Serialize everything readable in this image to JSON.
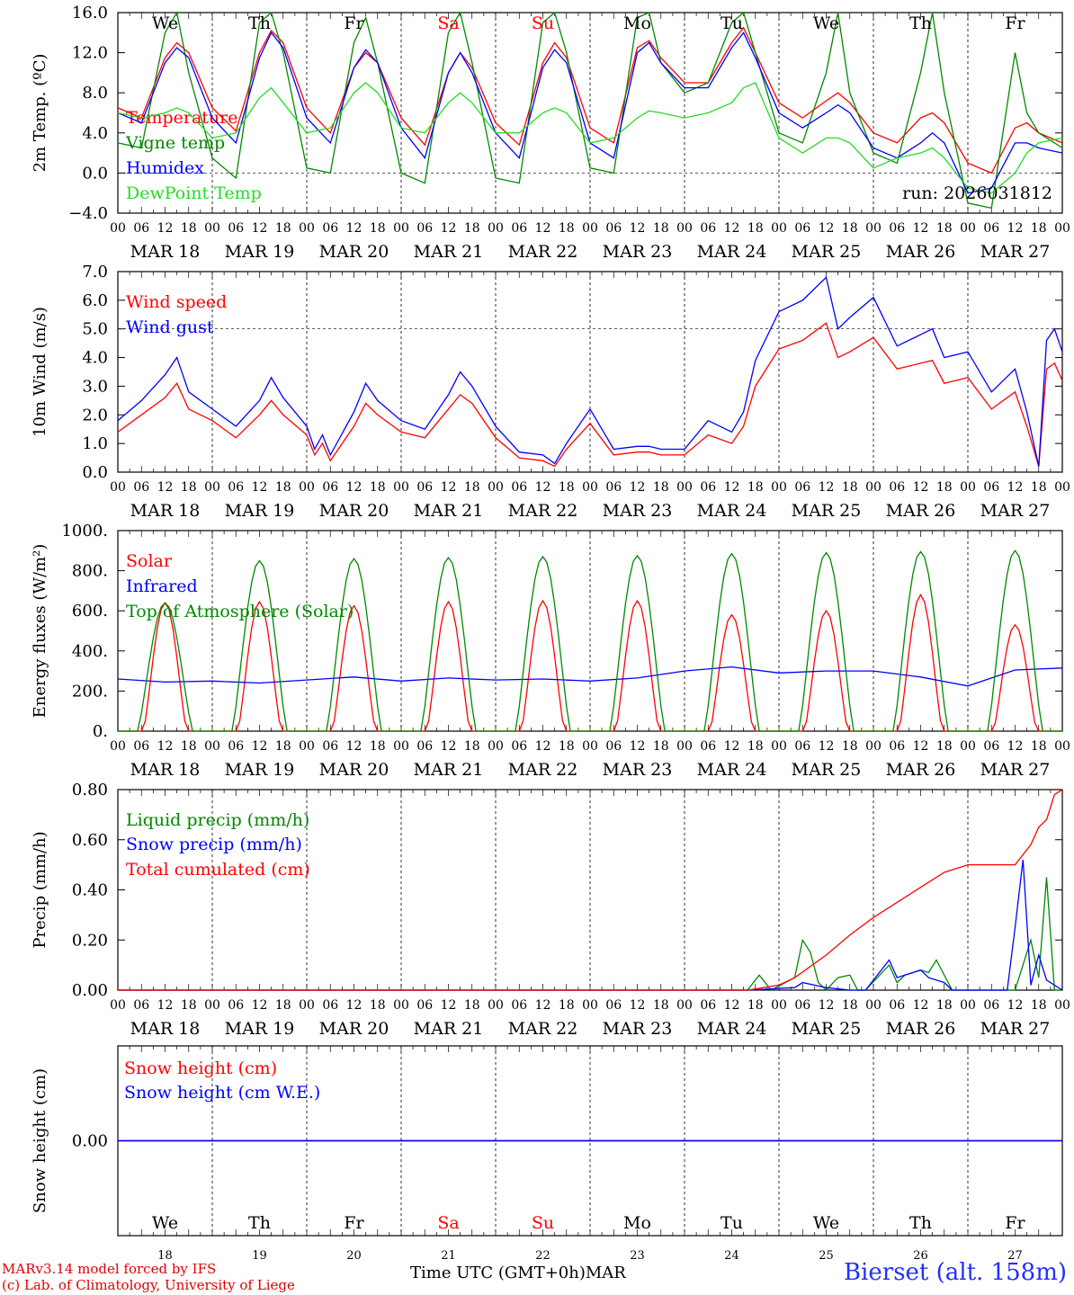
{
  "colors": {
    "temperature": "#ff0000",
    "vigne": "#008800",
    "humidex": "#0000ff",
    "dewpoint": "#22dd22"
  },
  "footer": {
    "model": "MARv3.14 model forced by IFS",
    "lab": "(c) Lab. of Climatology, University of Liege",
    "xlabel": "Time UTC (GMT+0h)",
    "month": "MAR",
    "location": "Bierset (alt. 158m)"
  },
  "days": [
    "We",
    "Th",
    "Fr",
    "Sa",
    "Su",
    "Mo",
    "Tu",
    "We",
    "Th",
    "Fr"
  ],
  "weekend_days": [
    3,
    4
  ],
  "dates": [
    "MAR 18",
    "MAR 19",
    "MAR 20",
    "MAR 21",
    "MAR 22",
    "MAR 23",
    "MAR 24",
    "MAR 25",
    "MAR 26",
    "MAR 27"
  ],
  "day_numbers": [
    "18",
    "19",
    "20",
    "21",
    "22",
    "23",
    "24",
    "25",
    "26",
    "27"
  ],
  "hour_ticks": [
    "00",
    "06",
    "12",
    "18"
  ],
  "final_hour": "00",
  "chart_data": [
    {
      "type": "line",
      "ylabel": "2m Temp. (ºC)",
      "ylim": [
        -4,
        16
      ],
      "yticks": [
        "16.0",
        "12.0",
        "8.0",
        "4.0",
        "0.0",
        "−4.0"
      ],
      "yticks_values": [
        16,
        12,
        8,
        4,
        0,
        -4
      ],
      "hline": 0,
      "annotation": "run: 2026031812",
      "series": [
        {
          "name": "Temperature",
          "color": "temperature",
          "x": [
            0,
            6,
            12,
            15,
            18,
            24,
            30,
            36,
            39,
            42,
            48,
            54,
            60,
            63,
            66,
            72,
            78,
            84,
            87,
            90,
            96,
            102,
            108,
            111,
            114,
            120,
            126,
            132,
            135,
            138,
            144,
            150,
            156,
            159,
            162,
            168,
            174,
            180,
            183,
            186,
            192,
            198,
            204,
            207,
            210,
            216,
            222,
            228,
            231,
            234,
            240
          ],
          "values": [
            6.5,
            5.5,
            11.5,
            13.0,
            12.0,
            6.5,
            4.2,
            12.0,
            14.2,
            13.0,
            6.5,
            4.0,
            10.5,
            12.0,
            11.0,
            5.5,
            2.8,
            10.0,
            12.0,
            10.5,
            5.0,
            2.8,
            11.0,
            13.0,
            11.5,
            4.5,
            3.0,
            12.5,
            13.2,
            11.5,
            9.0,
            9.0,
            13.0,
            14.5,
            12.0,
            7.0,
            5.5,
            7.2,
            8.0,
            7.0,
            4.0,
            3.0,
            5.5,
            6.0,
            5.0,
            1.0,
            0.0,
            4.5,
            5.0,
            4.0,
            3.0
          ]
        },
        {
          "name": "Vigne temp",
          "color": "vigne",
          "x": [
            0,
            6,
            12,
            15,
            18,
            24,
            30,
            36,
            39,
            42,
            48,
            54,
            60,
            63,
            66,
            72,
            78,
            84,
            87,
            90,
            96,
            102,
            108,
            111,
            114,
            120,
            126,
            132,
            135,
            138,
            144,
            150,
            156,
            159,
            162,
            168,
            174,
            180,
            183,
            186,
            192,
            198,
            204,
            207,
            210,
            216,
            222,
            228,
            231,
            234,
            240
          ],
          "values": [
            3.0,
            2.5,
            14.0,
            16.0,
            10.0,
            1.5,
            -0.5,
            15.0,
            16.0,
            12.0,
            0.5,
            0.0,
            13.0,
            15.5,
            11.0,
            0.0,
            -1.0,
            14.0,
            16.0,
            11.0,
            -0.5,
            -1.0,
            15.0,
            16.0,
            12.0,
            0.5,
            0.0,
            15.5,
            16.0,
            11.0,
            8.0,
            9.0,
            15.0,
            16.0,
            12.0,
            4.0,
            3.0,
            10.0,
            16.0,
            8.0,
            2.0,
            1.0,
            10.0,
            16.0,
            8.0,
            -3.0,
            -3.5,
            12.0,
            6.0,
            4.0,
            2.5
          ]
        },
        {
          "name": "Humidex",
          "color": "humidex",
          "x": [
            0,
            6,
            12,
            15,
            18,
            24,
            30,
            36,
            39,
            42,
            48,
            54,
            60,
            63,
            66,
            72,
            78,
            84,
            87,
            90,
            96,
            102,
            108,
            111,
            114,
            120,
            126,
            132,
            135,
            138,
            144,
            150,
            156,
            159,
            162,
            168,
            174,
            180,
            183,
            186,
            192,
            198,
            204,
            207,
            210,
            216,
            222,
            228,
            231,
            234,
            240
          ],
          "values": [
            6.0,
            5.0,
            11.0,
            12.5,
            11.5,
            5.5,
            3.0,
            11.5,
            14.0,
            12.5,
            5.5,
            3.0,
            10.5,
            12.3,
            11.0,
            4.5,
            1.5,
            10.0,
            12.0,
            10.0,
            4.0,
            1.5,
            10.5,
            12.3,
            11.0,
            3.0,
            1.5,
            12.0,
            13.0,
            11.0,
            8.5,
            8.5,
            12.5,
            14.0,
            11.5,
            6.0,
            4.5,
            6.0,
            6.8,
            6.0,
            2.5,
            1.5,
            3.0,
            4.0,
            3.0,
            -2.0,
            -1.5,
            3.0,
            3.0,
            2.5,
            2.0
          ]
        },
        {
          "name": "DewPoint Temp",
          "color": "dewpoint",
          "x": [
            0,
            6,
            12,
            15,
            18,
            24,
            30,
            36,
            39,
            42,
            48,
            54,
            60,
            63,
            66,
            72,
            78,
            84,
            87,
            90,
            96,
            102,
            108,
            111,
            114,
            120,
            126,
            132,
            135,
            138,
            144,
            150,
            156,
            159,
            162,
            168,
            174,
            180,
            183,
            186,
            192,
            198,
            204,
            207,
            210,
            216,
            222,
            228,
            231,
            234,
            240
          ],
          "values": [
            6.0,
            5.5,
            6.0,
            6.5,
            6.0,
            3.5,
            4.0,
            7.5,
            8.5,
            7.0,
            4.0,
            4.5,
            8.0,
            9.0,
            8.0,
            4.5,
            4.0,
            7.0,
            8.0,
            7.0,
            4.0,
            4.0,
            6.0,
            6.5,
            6.0,
            3.0,
            3.5,
            5.5,
            6.2,
            6.0,
            5.5,
            6.0,
            7.0,
            8.5,
            9.0,
            3.5,
            2.0,
            3.5,
            3.5,
            3.0,
            0.5,
            1.5,
            2.0,
            2.5,
            1.5,
            -1.5,
            -2.0,
            0.0,
            2.0,
            3.0,
            3.5
          ]
        }
      ]
    },
    {
      "type": "line",
      "ylabel": "10m Wind (m/s)",
      "ylim": [
        0,
        7
      ],
      "yticks": [
        "7.0",
        "6.0",
        "5.0",
        "4.0",
        "3.0",
        "2.0",
        "1.0",
        "0.0"
      ],
      "yticks_values": [
        7,
        6,
        5,
        4,
        3,
        2,
        1,
        0
      ],
      "hline": 5,
      "series": [
        {
          "name": "Wind speed",
          "color": "temperature",
          "x": [
            0,
            6,
            12,
            15,
            18,
            24,
            30,
            36,
            39,
            42,
            48,
            50,
            52,
            54,
            60,
            63,
            66,
            72,
            78,
            84,
            87,
            90,
            96,
            102,
            108,
            111,
            114,
            120,
            126,
            132,
            135,
            138,
            144,
            150,
            156,
            159,
            162,
            168,
            174,
            180,
            183,
            186,
            192,
            198,
            204,
            207,
            210,
            216,
            222,
            228,
            231,
            234,
            236,
            238,
            240
          ],
          "values": [
            1.4,
            2.0,
            2.6,
            3.1,
            2.2,
            1.8,
            1.2,
            2.0,
            2.5,
            2.0,
            1.3,
            0.6,
            1.0,
            0.4,
            1.6,
            2.4,
            2.0,
            1.4,
            1.2,
            2.2,
            2.7,
            2.4,
            1.2,
            0.5,
            0.4,
            0.2,
            0.8,
            1.7,
            0.6,
            0.7,
            0.7,
            0.6,
            0.6,
            1.3,
            1.0,
            1.6,
            3.0,
            4.3,
            4.6,
            5.2,
            4.0,
            4.2,
            4.7,
            3.6,
            3.8,
            3.9,
            3.1,
            3.3,
            2.2,
            2.8,
            1.6,
            0.2,
            3.6,
            3.8,
            3.2
          ]
        },
        {
          "name": "Wind gust",
          "color": "humidex",
          "x": [
            0,
            6,
            12,
            15,
            18,
            24,
            30,
            36,
            39,
            42,
            48,
            50,
            52,
            54,
            60,
            63,
            66,
            72,
            78,
            84,
            87,
            90,
            96,
            102,
            108,
            111,
            114,
            120,
            126,
            132,
            135,
            138,
            144,
            150,
            156,
            159,
            162,
            168,
            174,
            180,
            183,
            186,
            192,
            198,
            204,
            207,
            210,
            216,
            222,
            228,
            231,
            234,
            236,
            238,
            240
          ],
          "values": [
            1.8,
            2.5,
            3.4,
            4.0,
            2.8,
            2.2,
            1.6,
            2.5,
            3.3,
            2.6,
            1.6,
            0.8,
            1.3,
            0.6,
            2.1,
            3.1,
            2.5,
            1.8,
            1.5,
            2.7,
            3.5,
            3.0,
            1.6,
            0.7,
            0.6,
            0.3,
            1.0,
            2.2,
            0.8,
            0.9,
            0.9,
            0.8,
            0.8,
            1.8,
            1.4,
            2.1,
            3.9,
            5.6,
            6.0,
            6.8,
            5.0,
            5.4,
            6.1,
            4.4,
            4.8,
            5.0,
            4.0,
            4.2,
            2.8,
            3.6,
            2.1,
            0.2,
            4.6,
            5.0,
            4.2
          ]
        }
      ]
    },
    {
      "type": "line",
      "ylabel": "Energy fluxes (W/m²)",
      "ylim": [
        0,
        1000
      ],
      "yticks": [
        "1000.",
        "800.",
        "600.",
        "400.",
        "200.",
        "0."
      ],
      "yticks_values": [
        1000,
        800,
        600,
        400,
        200,
        0
      ],
      "peaks": {
        "toa": [
          640,
          850,
          860,
          865,
          870,
          875,
          885,
          890,
          895,
          900
        ],
        "solar": [
          640,
          645,
          625,
          645,
          650,
          650,
          580,
          600,
          680,
          530
        ]
      },
      "series": [
        {
          "name": "Solar",
          "color": "temperature",
          "values": []
        },
        {
          "name": "Infrared",
          "color": "humidex",
          "x": [
            0,
            12,
            24,
            36,
            48,
            60,
            72,
            84,
            96,
            108,
            120,
            132,
            144,
            156,
            168,
            180,
            192,
            204,
            216,
            228,
            240
          ],
          "values": [
            260,
            245,
            250,
            240,
            255,
            270,
            250,
            265,
            255,
            260,
            250,
            265,
            300,
            320,
            290,
            300,
            300,
            270,
            225,
            305,
            315
          ]
        },
        {
          "name": "Top of Atmosphere (Solar)",
          "color": "vigne",
          "values": []
        }
      ]
    },
    {
      "type": "line",
      "ylabel": "Precip (mm/h)",
      "ylim": [
        0,
        0.8
      ],
      "yticks": [
        "0.80",
        "0.60",
        "0.40",
        "0.20",
        "0.00"
      ],
      "yticks_values": [
        0.8,
        0.6,
        0.4,
        0.2,
        0
      ],
      "series": [
        {
          "name": "Liquid precip (mm/h)",
          "color": "vigne",
          "x": [
            0,
            160,
            163,
            166,
            172,
            174,
            176,
            178,
            180,
            183,
            186,
            188,
            190,
            196,
            198,
            200,
            204,
            206,
            208,
            212,
            214,
            216,
            220,
            228,
            232,
            234,
            236,
            238,
            240
          ],
          "values": [
            0,
            0,
            0.06,
            0,
            0.05,
            0.2,
            0.15,
            0.03,
            0,
            0.05,
            0.06,
            0,
            0,
            0.1,
            0.03,
            0.06,
            0.08,
            0.07,
            0.12,
            0,
            0,
            0,
            0,
            0,
            0.2,
            0.05,
            0.45,
            0,
            0
          ]
        },
        {
          "name": "Snow precip (mm/h)",
          "color": "humidex",
          "x": [
            0,
            160,
            172,
            174,
            180,
            186,
            190,
            196,
            198,
            200,
            204,
            206,
            210,
            212,
            214,
            216,
            226,
            228,
            230,
            232,
            234,
            236,
            240
          ],
          "values": [
            0,
            0,
            0.01,
            0.03,
            0.01,
            0,
            0,
            0.12,
            0.05,
            0.06,
            0.08,
            0.05,
            0.03,
            0,
            0,
            0,
            0,
            0.25,
            0.52,
            0.02,
            0.14,
            0.04,
            0
          ]
        },
        {
          "name": "Total cumulated (cm)",
          "color": "temperature",
          "x": [
            0,
            160,
            168,
            172,
            180,
            186,
            192,
            198,
            204,
            210,
            216,
            228,
            232,
            234,
            236,
            238,
            240
          ],
          "values": [
            0,
            0,
            0.02,
            0.05,
            0.14,
            0.22,
            0.29,
            0.35,
            0.41,
            0.47,
            0.5,
            0.5,
            0.58,
            0.65,
            0.68,
            0.78,
            0.8
          ]
        }
      ]
    },
    {
      "type": "line",
      "ylabel": "Snow height (cm)",
      "ylim": [
        -0.5,
        0.5
      ],
      "yticks": [
        "0.00"
      ],
      "yticks_values": [
        0
      ],
      "series": [
        {
          "name": "Snow height (cm)",
          "color": "temperature",
          "x": [
            0,
            240
          ],
          "values": [
            0,
            0
          ]
        },
        {
          "name": "Snow height (cm W.E.)",
          "color": "humidex",
          "x": [
            0,
            240
          ],
          "values": [
            0,
            0
          ]
        }
      ]
    }
  ]
}
